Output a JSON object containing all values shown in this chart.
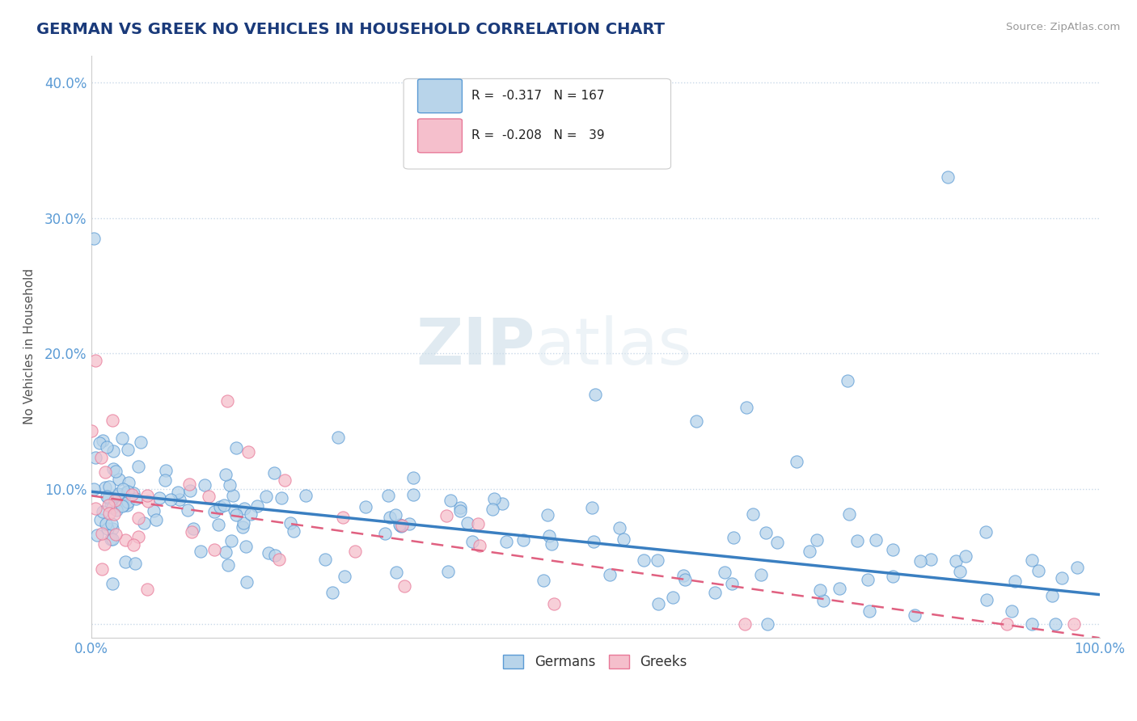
{
  "title": "GERMAN VS GREEK NO VEHICLES IN HOUSEHOLD CORRELATION CHART",
  "source": "Source: ZipAtlas.com",
  "ylabel": "No Vehicles in Household",
  "legend_german": "Germans",
  "legend_greek": "Greeks",
  "r_german": "-0.317",
  "n_german": "167",
  "r_greek": "-0.208",
  "n_greek": "39",
  "watermark_zip": "ZIP",
  "watermark_atlas": "atlas",
  "german_color": "#b8d4ea",
  "greek_color": "#f5bfcc",
  "german_edge_color": "#5b9bd5",
  "greek_edge_color": "#e87898",
  "german_line_color": "#3a7fc1",
  "greek_line_color": "#e06080",
  "background_color": "#ffffff",
  "grid_color": "#c8d8e8",
  "title_color": "#1a3a7a",
  "axis_color": "#5b9bd5",
  "xlim": [
    0.0,
    1.0
  ],
  "ylim": [
    -0.01,
    0.42
  ],
  "german_line_x": [
    0.0,
    1.0
  ],
  "german_line_y": [
    0.098,
    0.022
  ],
  "greek_line_x": [
    0.0,
    1.0
  ],
  "greek_line_y": [
    0.095,
    -0.01
  ]
}
